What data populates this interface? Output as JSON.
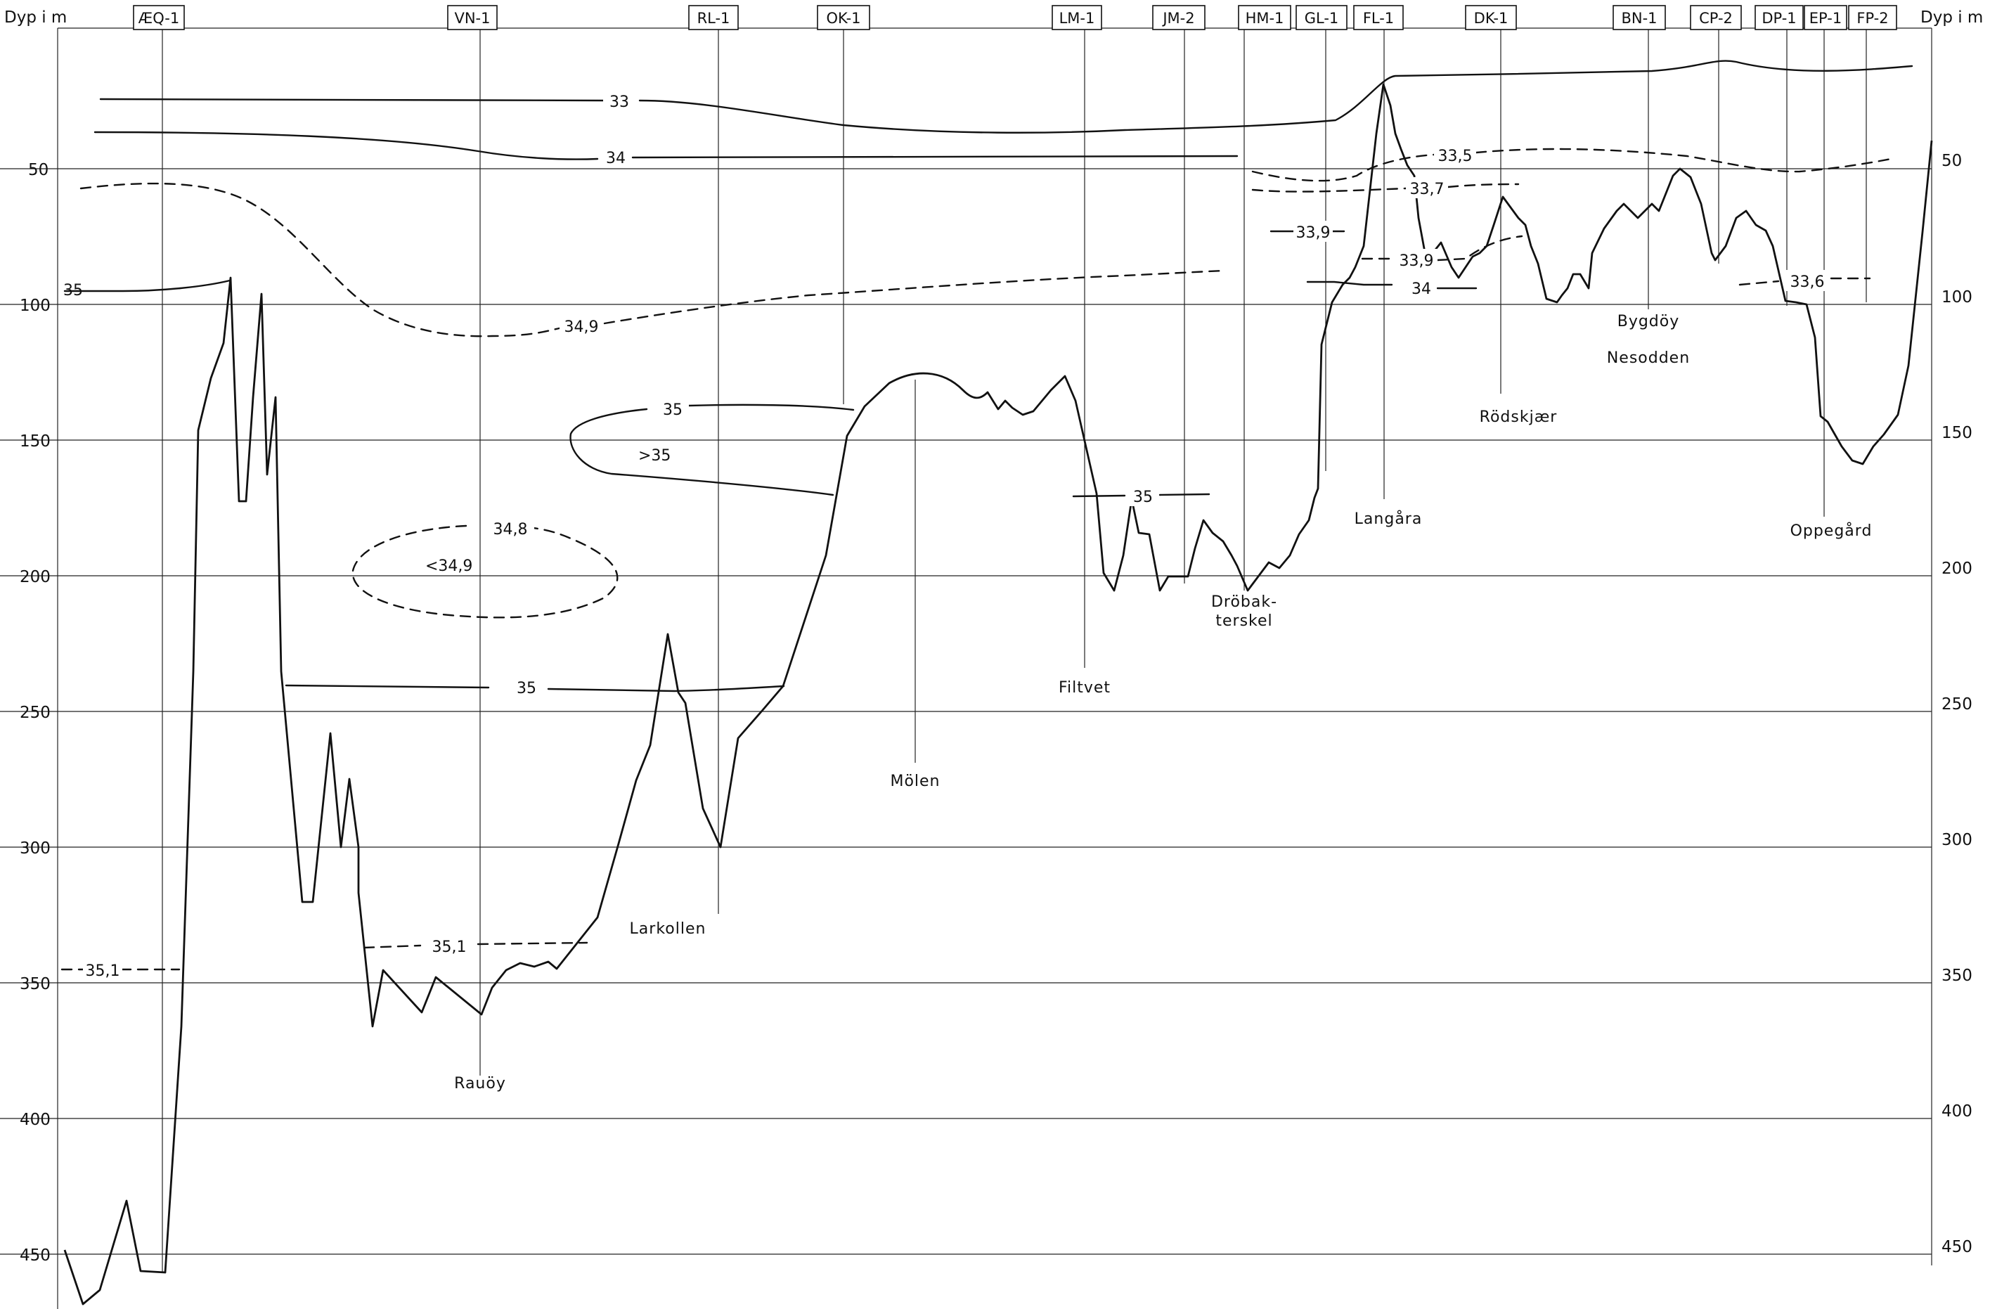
{
  "axis": {
    "left_title": "Dyp i m",
    "right_title": "Dyp i m",
    "ticks": [
      "50",
      "100",
      "150",
      "200",
      "250",
      "300",
      "350",
      "400",
      "450"
    ]
  },
  "stations": [
    "ÆQ-1",
    "VN-1",
    "RL-1",
    "OK-1",
    "LM-1",
    "JM-2",
    "HM-1",
    "GL-1",
    "FL-1",
    "DK-1",
    "BN-1",
    "CP-2",
    "DP-1",
    "EP-1",
    "FP-2"
  ],
  "places": {
    "rauoy": "Rauöy",
    "larkollen": "Larkollen",
    "molen": "Mölen",
    "filtvet": "Filtvet",
    "drobak_1": "Dröbak-",
    "drobak_2": "terskel",
    "langara": "Langåra",
    "rodskjaer": "Rödskjær",
    "bygdoy": "Bygdöy",
    "nesodden": "Nesodden",
    "oppegard": "Oppegård"
  },
  "contours": {
    "c33": "33",
    "c34": "34",
    "c35_left": "35",
    "c34_9": "34,9",
    "c35_upper": "35",
    "c_gt35": ">35",
    "c34_8": "34,8",
    "c_lt34_9": "<34,9",
    "c35_mid": "35",
    "c35_1_a": "35,1",
    "c35_1_b": "35,1",
    "c35_filtvet": "35",
    "c33_5": "33,5",
    "c33_7": "33,7",
    "c33_9_a": "33,9",
    "c33_9_b": "33,9",
    "c34_inner": "34",
    "c33_6": "33,6"
  }
}
